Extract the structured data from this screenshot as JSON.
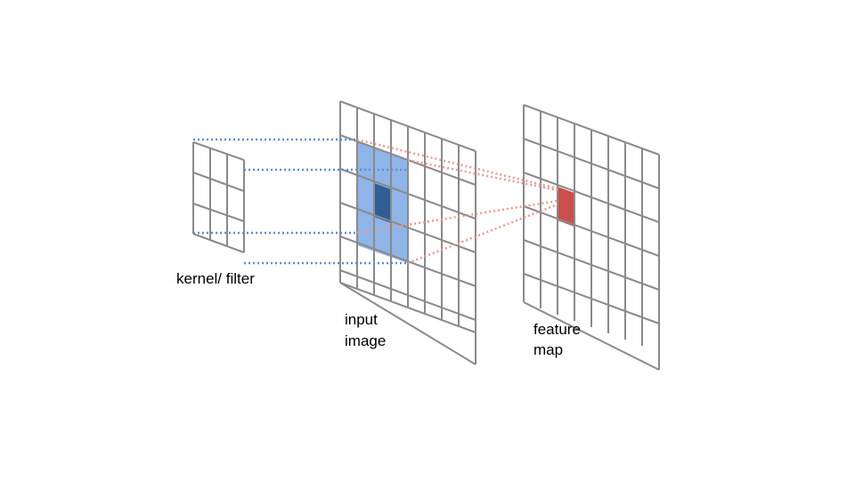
{
  "labels": {
    "kernel": "kernel/ filter",
    "input_line1": "input",
    "input_line2": "image",
    "feature_line1": "feature",
    "feature_line2": "map"
  },
  "grids": {
    "kernel_cells": 3,
    "input_cells": 8,
    "feature_cells": 8
  },
  "colors": {
    "grid_line": "#8a8a8a",
    "receptive_field": "#8fb4e8",
    "center_cell": "#2f5f95",
    "output_cell": "#c9504a",
    "kernel_projection": "#5b8fd0",
    "output_projection": "#e79a94"
  }
}
